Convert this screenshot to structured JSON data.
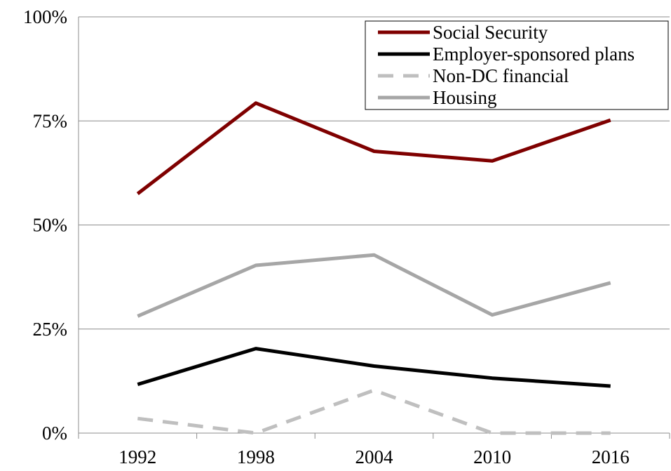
{
  "chart_data": {
    "type": "line",
    "title": "",
    "xlabel": "",
    "ylabel": "",
    "x": [
      "1992",
      "1998",
      "2004",
      "2010",
      "2016"
    ],
    "ylim": [
      0,
      100
    ],
    "yticks": [
      0,
      25,
      50,
      75,
      100
    ],
    "ytick_labels": [
      "0%",
      "25%",
      "50%",
      "75%",
      "100%"
    ],
    "grid": "horizontal",
    "legend_position": "top-right",
    "series": [
      {
        "name": "Social Security",
        "color": "#7f0000",
        "style": "solid",
        "values": [
          57.5,
          79.3,
          67.7,
          65.4,
          75.2
        ]
      },
      {
        "name": "Employer-sponsored plans",
        "color": "#000000",
        "style": "solid",
        "values": [
          11.7,
          20.3,
          16.1,
          13.2,
          11.3
        ]
      },
      {
        "name": "Non-DC financial",
        "color": "#bfbfbf",
        "style": "dashed",
        "values": [
          3.5,
          0.0,
          10.3,
          0.0,
          0.0
        ]
      },
      {
        "name": "Housing",
        "color": "#a6a6a6",
        "style": "solid",
        "values": [
          28.1,
          40.3,
          42.8,
          28.4,
          36.1
        ]
      }
    ]
  }
}
